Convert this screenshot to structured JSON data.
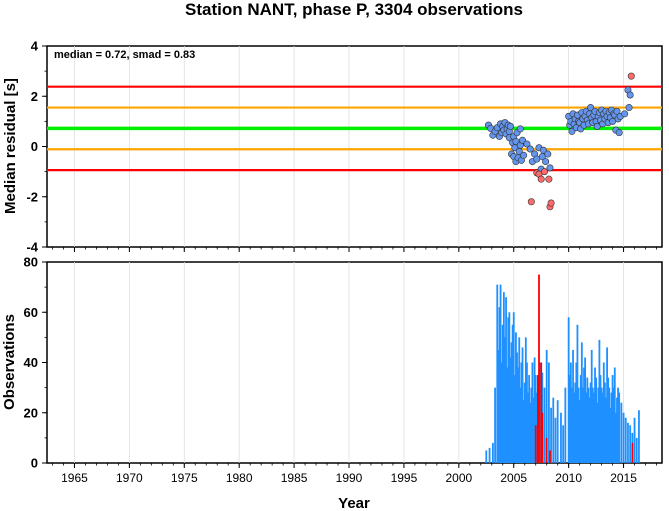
{
  "title": "Station NANT, phase P, 3304 observations",
  "chart_data": [
    {
      "type": "scatter",
      "ylabel": "Median residual [s]",
      "xlim": [
        1962.5,
        2018.5
      ],
      "ylim": [
        -4,
        4
      ],
      "yticks": [
        -4,
        -2,
        0,
        2,
        4
      ],
      "annotation": "median = 0.72, smad = 0.83",
      "reference_lines": [
        {
          "y": 2.38,
          "color": "#ff0000"
        },
        {
          "y": 1.55,
          "color": "#ffa500"
        },
        {
          "y": 0.72,
          "color": "#00ee00"
        },
        {
          "y": -0.11,
          "color": "#ffa500"
        },
        {
          "y": -0.94,
          "color": "#ff0000"
        }
      ],
      "series": [
        {
          "color": "#6495ed",
          "points": [
            [
              2002.7,
              0.85
            ],
            [
              2002.9,
              0.72
            ],
            [
              2003.1,
              0.45
            ],
            [
              2003.3,
              0.6
            ],
            [
              2003.5,
              0.75
            ],
            [
              2003.7,
              0.4
            ],
            [
              2003.8,
              0.9
            ],
            [
              2003.9,
              0.55
            ],
            [
              2004.0,
              0.8
            ],
            [
              2004.1,
              0.65
            ],
            [
              2004.2,
              0.95
            ],
            [
              2004.3,
              0.5
            ],
            [
              2004.4,
              0.7
            ],
            [
              2004.5,
              0.85
            ],
            [
              2004.6,
              0.35
            ],
            [
              2004.6,
              0.6
            ],
            [
              2004.7,
              0.8
            ],
            [
              2004.8,
              -0.3
            ],
            [
              2004.9,
              0.15
            ],
            [
              2005.0,
              -0.4
            ],
            [
              2005.0,
              0.4
            ],
            [
              2005.1,
              -0.05
            ],
            [
              2005.2,
              -0.6
            ],
            [
              2005.2,
              0.2
            ],
            [
              2005.3,
              0.55
            ],
            [
              2005.4,
              -0.45
            ],
            [
              2005.5,
              -0.2
            ],
            [
              2005.6,
              0.05
            ],
            [
              2005.6,
              0.7
            ],
            [
              2005.7,
              -0.55
            ],
            [
              2005.8,
              0.25
            ],
            [
              2005.9,
              -0.35
            ],
            [
              2006.2,
              0.1
            ],
            [
              2006.5,
              -0.1
            ],
            [
              2006.7,
              -0.6
            ],
            [
              2006.9,
              -0.3
            ],
            [
              2007.1,
              -0.5
            ],
            [
              2007.3,
              -0.05
            ],
            [
              2007.5,
              -0.9
            ],
            [
              2007.6,
              -0.4
            ],
            [
              2007.7,
              -0.15
            ],
            [
              2007.9,
              -0.6
            ],
            [
              2008.1,
              -0.3
            ],
            [
              2008.3,
              -0.85
            ],
            [
              2010.0,
              1.2
            ],
            [
              2010.1,
              0.85
            ],
            [
              2010.2,
              1.0
            ],
            [
              2010.3,
              0.6
            ],
            [
              2010.4,
              1.3
            ],
            [
              2010.5,
              0.9
            ],
            [
              2010.6,
              1.1
            ],
            [
              2010.7,
              0.75
            ],
            [
              2010.8,
              1.25
            ],
            [
              2010.9,
              1.0
            ],
            [
              2011.0,
              0.95
            ],
            [
              2011.1,
              0.7
            ],
            [
              2011.2,
              1.35
            ],
            [
              2011.3,
              1.1
            ],
            [
              2011.4,
              0.85
            ],
            [
              2011.5,
              1.2
            ],
            [
              2011.6,
              1.4
            ],
            [
              2011.7,
              1.05
            ],
            [
              2011.8,
              0.9
            ],
            [
              2011.9,
              1.3
            ],
            [
              2012.0,
              1.55
            ],
            [
              2012.1,
              1.15
            ],
            [
              2012.2,
              0.95
            ],
            [
              2012.3,
              1.25
            ],
            [
              2012.4,
              1.4
            ],
            [
              2012.5,
              1.0
            ],
            [
              2012.6,
              0.8
            ],
            [
              2012.7,
              1.2
            ],
            [
              2012.8,
              1.35
            ],
            [
              2012.9,
              1.05
            ],
            [
              2013.0,
              1.45
            ],
            [
              2013.1,
              0.9
            ],
            [
              2013.2,
              1.3
            ],
            [
              2013.3,
              1.1
            ],
            [
              2013.4,
              1.4
            ],
            [
              2013.5,
              1.2
            ],
            [
              2013.6,
              0.95
            ],
            [
              2013.7,
              1.35
            ],
            [
              2013.8,
              1.15
            ],
            [
              2013.9,
              1.45
            ],
            [
              2014.0,
              1.0
            ],
            [
              2014.1,
              1.3
            ],
            [
              2014.2,
              1.25
            ],
            [
              2014.3,
              0.65
            ],
            [
              2014.4,
              1.4
            ],
            [
              2014.5,
              1.1
            ],
            [
              2014.6,
              0.55
            ],
            [
              2014.7,
              1.2
            ],
            [
              2015.1,
              1.3
            ],
            [
              2015.4,
              2.25
            ],
            [
              2015.5,
              1.55
            ],
            [
              2015.6,
              2.05
            ]
          ]
        },
        {
          "color": "#ff6a6a",
          "points": [
            [
              2006.6,
              -2.2
            ],
            [
              2007.1,
              -1.05
            ],
            [
              2007.3,
              -1.1
            ],
            [
              2007.5,
              -1.3
            ],
            [
              2007.8,
              -1.0
            ],
            [
              2008.2,
              -1.3
            ],
            [
              2008.3,
              -2.4
            ],
            [
              2008.4,
              -2.25
            ],
            [
              2015.7,
              2.8
            ]
          ]
        }
      ]
    },
    {
      "type": "bar",
      "xlabel": "Year",
      "ylabel": "Observations",
      "xlim": [
        1962.5,
        2018.5
      ],
      "ylim": [
        0,
        80
      ],
      "yticks": [
        0,
        20,
        40,
        60,
        80
      ],
      "xticks": [
        "1965",
        "1970",
        "1975",
        "1980",
        "1985",
        "1990",
        "1995",
        "2000",
        "2005",
        "2010",
        "2015"
      ],
      "series": [
        {
          "color": "#1e90ff",
          "x": [
            2002.5,
            2002.8,
            2003.1,
            2003.3,
            2003.5,
            2003.6,
            2003.7,
            2003.8,
            2003.9,
            2004.0,
            2004.1,
            2004.2,
            2004.3,
            2004.4,
            2004.5,
            2004.6,
            2004.7,
            2004.8,
            2004.9,
            2005.0,
            2005.1,
            2005.2,
            2005.3,
            2005.4,
            2005.5,
            2005.6,
            2005.7,
            2005.8,
            2005.9,
            2006.0,
            2006.1,
            2006.2,
            2006.3,
            2006.4,
            2006.5,
            2006.6,
            2006.7,
            2006.8,
            2006.9,
            2007.0,
            2007.1,
            2007.2,
            2007.4,
            2007.6,
            2007.8,
            2008.0,
            2008.2,
            2008.4,
            2008.6,
            2008.8,
            2009.0,
            2009.3,
            2009.5,
            2009.7,
            2010.0,
            2010.1,
            2010.2,
            2010.3,
            2010.4,
            2010.5,
            2010.6,
            2010.7,
            2010.8,
            2010.9,
            2011.0,
            2011.1,
            2011.2,
            2011.3,
            2011.4,
            2011.5,
            2011.6,
            2011.7,
            2011.8,
            2011.9,
            2012.0,
            2012.1,
            2012.2,
            2012.3,
            2012.4,
            2012.5,
            2012.6,
            2012.7,
            2012.8,
            2012.9,
            2013.0,
            2013.1,
            2013.2,
            2013.3,
            2013.4,
            2013.5,
            2013.6,
            2013.7,
            2013.8,
            2013.9,
            2014.0,
            2014.1,
            2014.2,
            2014.3,
            2014.4,
            2014.5,
            2014.6,
            2014.8,
            2015.0,
            2015.2,
            2015.4,
            2015.6,
            2015.8,
            2016.0,
            2016.2,
            2016.4
          ],
          "values": [
            5,
            6,
            8,
            30,
            71,
            45,
            62,
            71,
            40,
            55,
            68,
            50,
            66,
            38,
            58,
            60,
            42,
            48,
            55,
            60,
            35,
            52,
            44,
            38,
            50,
            30,
            40,
            46,
            25,
            32,
            50,
            40,
            28,
            35,
            24,
            30,
            40,
            26,
            42,
            35,
            28,
            20,
            40,
            36,
            30,
            45,
            40,
            22,
            26,
            18,
            25,
            20,
            15,
            30,
            58,
            35,
            40,
            30,
            45,
            28,
            32,
            40,
            55,
            30,
            25,
            35,
            48,
            30,
            38,
            42,
            28,
            34,
            30,
            26,
            32,
            45,
            30,
            28,
            38,
            34,
            24,
            30,
            49,
            35,
            30,
            28,
            40,
            32,
            26,
            46,
            34,
            30,
            22,
            28,
            35,
            30,
            38,
            20,
            26,
            30,
            28,
            24,
            20,
            18,
            16,
            15,
            12,
            18,
            10,
            21
          ]
        },
        {
          "color": "#ff0000",
          "x": [
            2007.0,
            2007.2,
            2007.3,
            2007.5,
            2007.6,
            2008.0,
            2008.3,
            2015.8
          ],
          "values": [
            15,
            35,
            75,
            40,
            20,
            10,
            5,
            8
          ]
        }
      ]
    }
  ]
}
